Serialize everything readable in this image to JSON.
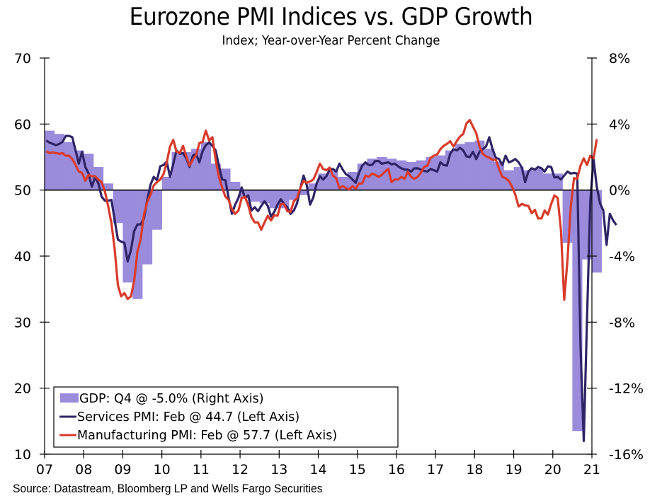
{
  "chart_data": {
    "type": "bar+line",
    "title": "Eurozone PMI Indices vs. GDP Growth",
    "subtitle": "Index; Year-over-Year Percent Change",
    "source": "Source: Datastream, Bloomberg LP and Wells Fargo Securities",
    "x_ticks": [
      "07",
      "08",
      "09",
      "10",
      "11",
      "12",
      "13",
      "14",
      "15",
      "16",
      "17",
      "18",
      "19",
      "20",
      "21"
    ],
    "x_range": [
      2007.0,
      2021.0
    ],
    "left_axis": {
      "label": "Index",
      "ylim": [
        10,
        70
      ],
      "ticks": [
        10,
        20,
        30,
        40,
        50,
        60,
        70
      ],
      "tick_labels": [
        "10",
        "20",
        "30",
        "40",
        "50",
        "60",
        "70"
      ]
    },
    "right_axis": {
      "label": "Year-over-Year Percent Change",
      "ylim": [
        -16,
        8
      ],
      "ticks": [
        -16,
        -12,
        -8,
        -4,
        0,
        4,
        8
      ],
      "tick_labels": [
        "-16%",
        "-12%",
        "-8%",
        "-4%",
        "0%",
        "4%",
        "8%"
      ]
    },
    "reference_line": {
      "axis": "left",
      "value": 50
    },
    "legend": {
      "placement": "bottom-left",
      "entries": [
        {
          "key": "gdp",
          "label": "GDP: Q4 @ -5.0% (Right Axis)"
        },
        {
          "key": "services",
          "label": "Services PMI: Feb @ 44.7 (Left Axis)"
        },
        {
          "key": "manufacturing",
          "label": "Manufacturing PMI: Feb @ 57.7 (Left Axis)"
        }
      ]
    },
    "series": [
      {
        "name": "GDP",
        "key": "gdp",
        "type": "bar",
        "axis": "right",
        "frequency": "quarterly",
        "start": 2007.0,
        "color": "#9b8bdb",
        "values": [
          3.6,
          3.4,
          2.9,
          2.4,
          2.2,
          1.4,
          0.4,
          -2.0,
          -5.6,
          -6.6,
          -4.5,
          -2.4,
          0.8,
          2.3,
          2.3,
          2.5,
          2.9,
          1.6,
          1.3,
          0.5,
          -0.5,
          -0.7,
          -0.8,
          -1.1,
          -1.1,
          -0.6,
          -0.3,
          0.4,
          1.0,
          1.2,
          0.8,
          1.1,
          1.6,
          1.9,
          2.0,
          1.9,
          1.8,
          1.7,
          1.8,
          2.0,
          2.1,
          2.4,
          2.8,
          2.9,
          3.0,
          2.5,
          1.7,
          1.2,
          1.4,
          1.2,
          1.3,
          1.0,
          1.0,
          -3.2,
          -14.6,
          -4.2,
          -5.0
        ],
        "latest_label": "Q4 @ -5.0%"
      },
      {
        "name": "Services PMI",
        "key": "services",
        "type": "line",
        "axis": "left",
        "frequency": "monthly",
        "start": 2007.0,
        "color": "#2e2466",
        "values": [
          57.5,
          57.2,
          57.0,
          56.8,
          57.0,
          57.3,
          58.2,
          58.2,
          58.0,
          56.0,
          54.0,
          55.8,
          53.5,
          52.5,
          50.5,
          52.0,
          51.0,
          49.0,
          48.4,
          48.4,
          48.5,
          45.5,
          42.5,
          42.2,
          42.0,
          39.2,
          40.9,
          43.8,
          44.8,
          44.8,
          45.7,
          48.5,
          50.8,
          52.0,
          51.5,
          53.6,
          53.8,
          54.3,
          52.0,
          54.0,
          56.0,
          55.5,
          55.6,
          54.8,
          53.5,
          55.2,
          55.5,
          54.2,
          55.9,
          56.8,
          57.2,
          56.7,
          56.0,
          53.7,
          51.6,
          51.5,
          48.8,
          46.4,
          47.8,
          48.8,
          50.4,
          48.8,
          49.2,
          46.9,
          47.4,
          46.8,
          47.6,
          48.3,
          47.6,
          46.0,
          46.7,
          47.8,
          48.6,
          47.9,
          47.4,
          46.4,
          46.9,
          48.0,
          50.3,
          52.2,
          50.7,
          47.8,
          48.9,
          51.0,
          52.1,
          51.6,
          52.1,
          53.1,
          53.2,
          52.8,
          54.0,
          53.1,
          52.4,
          52.1,
          51.6,
          51.1,
          52.6,
          53.7,
          54.2,
          53.8,
          53.8,
          54.4,
          54.4,
          54.0,
          54.1,
          54.2,
          53.9,
          54.0,
          53.6,
          53.3,
          53.1,
          53.1,
          52.8,
          53.3,
          53.3,
          53.1,
          52.9,
          52.8,
          53.2,
          53.0,
          52.8,
          54.2,
          53.8,
          53.7,
          55.5,
          56.2,
          56.0,
          56.4,
          56.0,
          55.1,
          55.0,
          55.8,
          54.7,
          55.8,
          56.2,
          56.6,
          58.0,
          56.2,
          54.9,
          54.7,
          53.8,
          55.2,
          54.2,
          54.4,
          54.7,
          54.2,
          53.4,
          51.2,
          52.8,
          53.3,
          53.1,
          53.5,
          53.3,
          52.8,
          53.6,
          53.5,
          51.9,
          52.0,
          51.6,
          52.2,
          52.8,
          52.5,
          52.6,
          52.5,
          26.4,
          12.0,
          30.5,
          48.3,
          54.7,
          50.5,
          48.0,
          46.9,
          41.7,
          46.4,
          45.4,
          44.7
        ]
      },
      {
        "name": "Manufacturing PMI",
        "key": "manufacturing",
        "type": "line",
        "axis": "left",
        "frequency": "monthly",
        "start": 2007.0,
        "color": "#d83b2a",
        "values": [
          55.9,
          55.6,
          55.7,
          55.6,
          55.5,
          55.6,
          55.2,
          55.2,
          54.7,
          53.8,
          52.8,
          52.6,
          51.4,
          52.3,
          52.1,
          52.1,
          51.6,
          51.2,
          49.8,
          47.6,
          45.0,
          41.1,
          35.6,
          33.9,
          34.4,
          33.5,
          33.9,
          36.3,
          40.7,
          42.6,
          46.3,
          48.2,
          49.3,
          50.7,
          51.2,
          51.6,
          52.4,
          54.2,
          56.6,
          57.6,
          55.8,
          55.6,
          56.7,
          55.1,
          53.7,
          54.6,
          55.3,
          57.1,
          57.3,
          59.0,
          57.5,
          58.0,
          54.6,
          52.0,
          50.4,
          49.0,
          48.5,
          47.1,
          46.4,
          46.9,
          48.8,
          49.0,
          47.7,
          45.9,
          45.1,
          45.1,
          44.0,
          45.1,
          46.1,
          45.4,
          46.2,
          46.1,
          47.9,
          47.9,
          46.8,
          46.7,
          48.3,
          48.8,
          50.3,
          51.4,
          51.1,
          51.3,
          51.6,
          52.7,
          54.0,
          53.2,
          53.0,
          53.4,
          52.2,
          51.8,
          50.3,
          50.6,
          50.3,
          50.1,
          50.6,
          50.2,
          51.0,
          51.0,
          52.2,
          52.0,
          52.5,
          52.3,
          52.0,
          52.3,
          52.8,
          53.2,
          51.2,
          51.6,
          51.6,
          52.0,
          51.7,
          52.8,
          52.0,
          51.7,
          52.0,
          52.6,
          53.5,
          53.7,
          54.9,
          55.2,
          55.4,
          56.2,
          56.7,
          57.0,
          57.4,
          56.6,
          57.4,
          58.1,
          58.5,
          60.1,
          60.6,
          59.6,
          58.6,
          56.6,
          55.5,
          55.1,
          54.9,
          54.6,
          54.6,
          53.2,
          52.0,
          51.8,
          51.4,
          50.5,
          49.3,
          47.5,
          47.9,
          47.7,
          47.6,
          46.5,
          47.0,
          45.7,
          45.7,
          46.9,
          46.3,
          47.9,
          49.2,
          48.8,
          43.9,
          33.4,
          39.4,
          47.4,
          51.8,
          51.7,
          53.7,
          54.8,
          53.8,
          55.2,
          54.8,
          57.7
        ]
      }
    ]
  }
}
